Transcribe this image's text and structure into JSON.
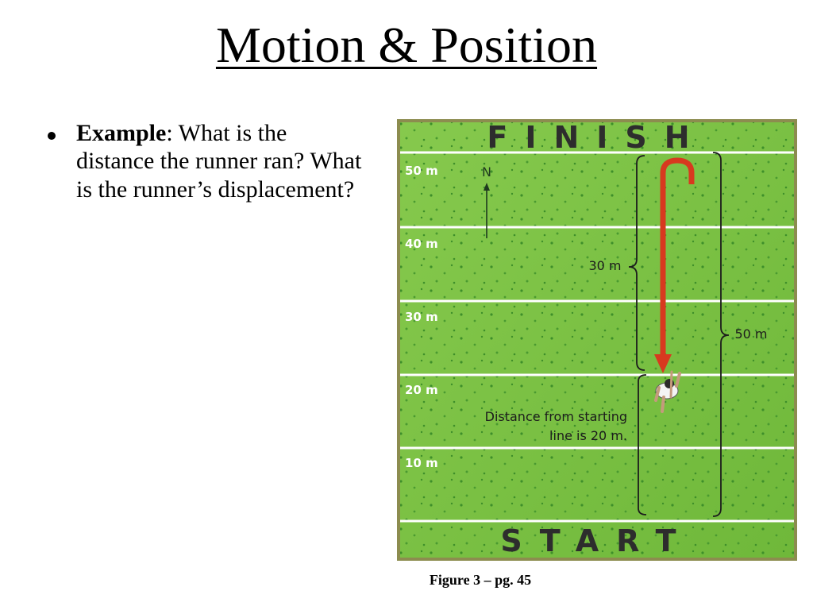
{
  "slide": {
    "title": "Motion & Position",
    "bullet": {
      "label": "Example",
      "text": ": What is the distance the runner ran? What is the runner’s displacement?"
    },
    "caption": "Figure 3 – pg. 45"
  },
  "figure": {
    "finish_label": "FINISH",
    "start_label": "START",
    "north_label": "N",
    "yard_lines": [
      "50 m",
      "40 m",
      "30 m",
      "20 m",
      "10 m"
    ],
    "bracket_30": "30 m",
    "bracket_50": "50 m",
    "note_line1": "Distance from starting",
    "note_line2": "line is 20 m.",
    "colors": {
      "field": "#7cc443",
      "path": "#d8391f",
      "lines": "#ffffff"
    }
  }
}
